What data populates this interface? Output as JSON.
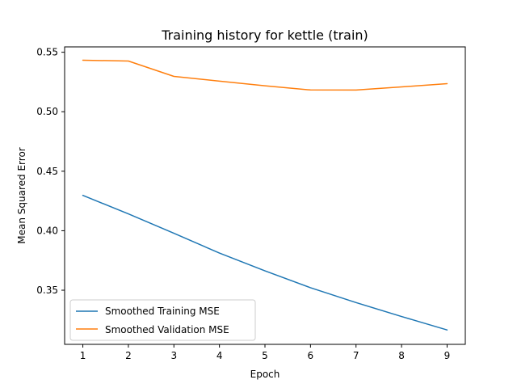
{
  "chart_data": {
    "type": "line",
    "title": "Training history for kettle (train)",
    "xlabel": "Epoch",
    "ylabel": "Mean Squared Error",
    "x": [
      1,
      2,
      3,
      4,
      5,
      6,
      7,
      8,
      9
    ],
    "xlim": [
      0.6,
      9.4
    ],
    "ylim": [
      0.3045,
      0.5545
    ],
    "xticks": [
      1,
      2,
      3,
      4,
      5,
      6,
      7,
      8,
      9
    ],
    "yticks": [
      0.35,
      0.4,
      0.45,
      0.5,
      0.55
    ],
    "ytick_labels": [
      "0.35",
      "0.40",
      "0.45",
      "0.50",
      "0.55"
    ],
    "grid": false,
    "legend_position": "lower-left",
    "series": [
      {
        "name": "Smoothed Training MSE",
        "color": "#1f77b4",
        "values": [
          0.4297,
          0.4142,
          0.3979,
          0.3812,
          0.3663,
          0.3521,
          0.3396,
          0.3279,
          0.3166
        ]
      },
      {
        "name": "Smoothed Validation MSE",
        "color": "#ff7f0e",
        "values": [
          0.5433,
          0.5426,
          0.5297,
          0.5257,
          0.5218,
          0.5183,
          0.5182,
          0.5209,
          0.5236
        ]
      }
    ]
  }
}
